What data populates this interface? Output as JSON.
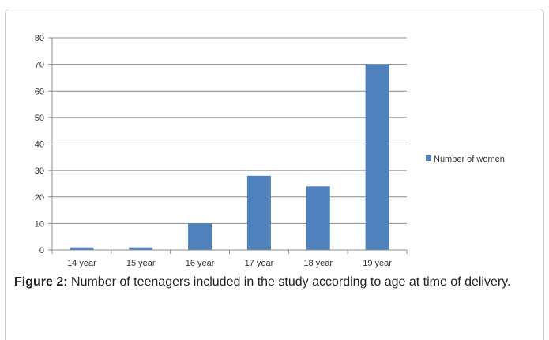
{
  "chart_data": {
    "type": "bar",
    "categories": [
      "14 year",
      "15 year",
      "16 year",
      "17 year",
      "18 year",
      "19 year"
    ],
    "series": [
      {
        "name": "Number of women",
        "values": [
          1,
          1,
          10,
          28,
          24,
          70
        ]
      }
    ],
    "ylim": [
      0,
      80
    ],
    "yticks": [
      0,
      10,
      20,
      30,
      40,
      50,
      60,
      70,
      80
    ],
    "ytick_labels": [
      "0",
      "10",
      "20",
      "30",
      "40",
      "50",
      "60",
      "70",
      "80"
    ],
    "grid": true,
    "legend_position": "right",
    "bar_color": "#4F81BD"
  },
  "caption": {
    "label": "Figure 2:",
    "text": " Number of teenagers included in the study according to age at time of delivery."
  }
}
